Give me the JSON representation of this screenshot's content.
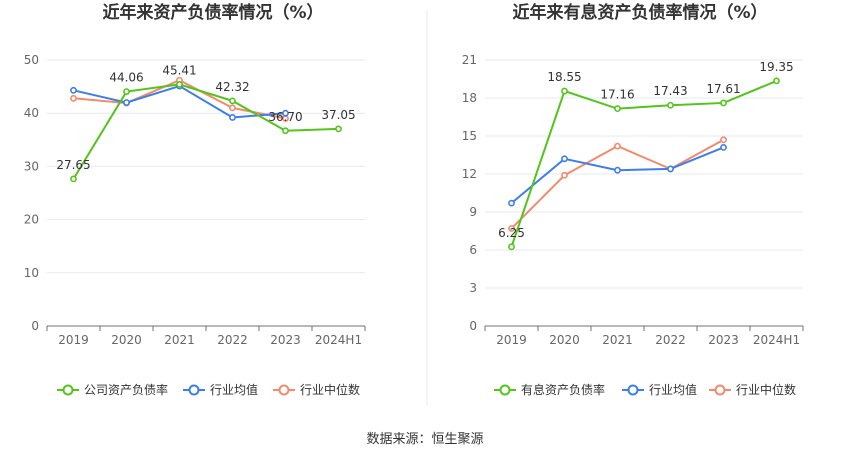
{
  "source_label": "数据来源：恒生聚源",
  "chart_data": [
    {
      "type": "line",
      "title": "近年来资产负债率情况（%）",
      "xlabel": "",
      "ylabel": "",
      "categories": [
        "2019",
        "2020",
        "2021",
        "2022",
        "2023",
        "2024H1"
      ],
      "ylim": [
        0,
        50
      ],
      "yticks": [
        0,
        10,
        20,
        30,
        40,
        50
      ],
      "grid": true,
      "legend_position": "bottom",
      "series": [
        {
          "name": "公司资产负债率",
          "color": "#52c41a",
          "values": [
            27.65,
            44.06,
            45.41,
            42.32,
            36.7,
            37.05
          ],
          "labels": [
            "27.65",
            "44.06",
            "45.41",
            "42.32",
            "36.70",
            "37.05"
          ]
        },
        {
          "name": "行业均值",
          "color": "#3d7ee8",
          "values": [
            44.3,
            42.0,
            45.1,
            39.2,
            40.0,
            null
          ]
        },
        {
          "name": "行业中位数",
          "color": "#f4896b",
          "values": [
            42.8,
            41.9,
            46.2,
            41.0,
            39.0,
            null
          ]
        }
      ]
    },
    {
      "type": "line",
      "title": "近年来有息资产负债率情况（%）",
      "xlabel": "",
      "ylabel": "",
      "categories": [
        "2019",
        "2020",
        "2021",
        "2022",
        "2023",
        "2024H1"
      ],
      "ylim": [
        0,
        21
      ],
      "yticks": [
        0,
        3,
        6,
        9,
        12,
        15,
        18,
        21
      ],
      "grid": true,
      "legend_position": "bottom",
      "series": [
        {
          "name": "有息资产负债率",
          "color": "#52c41a",
          "values": [
            6.25,
            18.55,
            17.16,
            17.43,
            17.61,
            19.35
          ],
          "labels": [
            "6.25",
            "18.55",
            "17.16",
            "17.43",
            "17.61",
            "19.35"
          ]
        },
        {
          "name": "行业均值",
          "color": "#3d7ee8",
          "values": [
            9.7,
            13.2,
            12.3,
            12.4,
            14.1,
            null
          ]
        },
        {
          "name": "行业中位数",
          "color": "#f4896b",
          "values": [
            7.7,
            11.9,
            14.2,
            12.4,
            14.7,
            null
          ]
        }
      ]
    }
  ]
}
